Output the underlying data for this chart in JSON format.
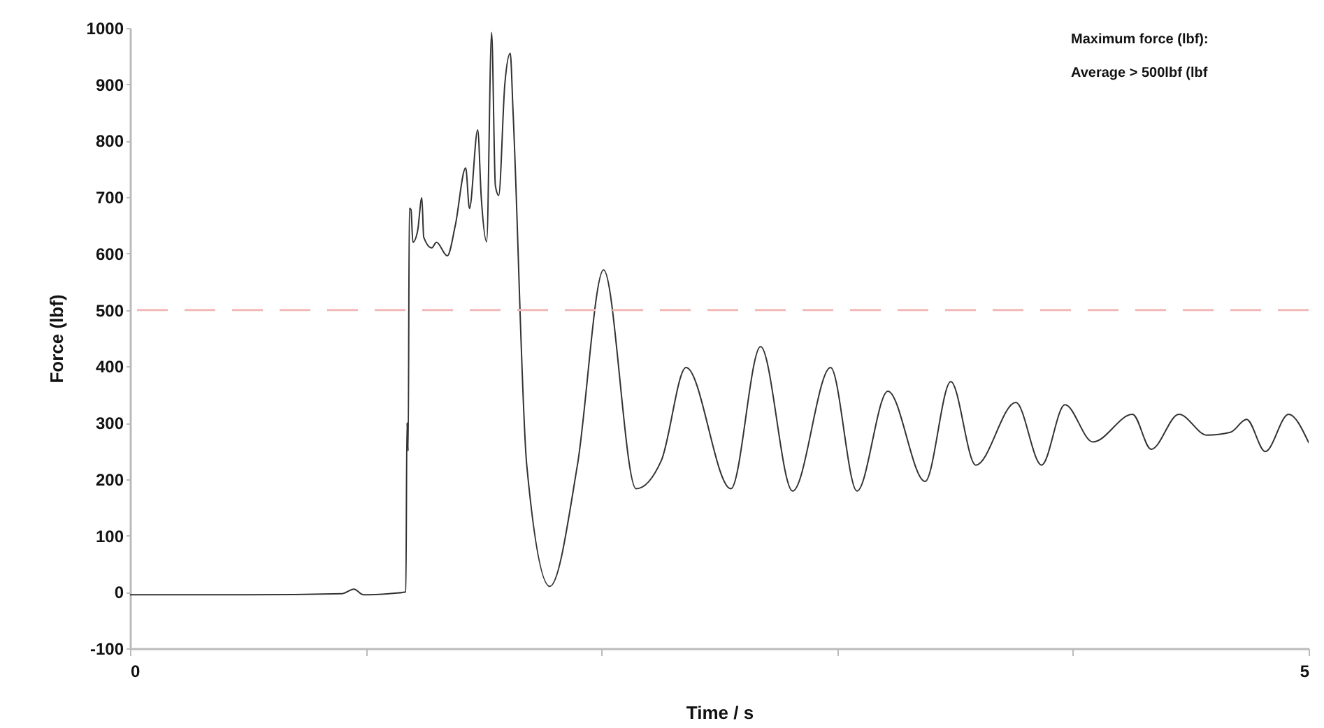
{
  "chart_data": {
    "type": "line",
    "xlabel": "Time / s",
    "ylabel": "Force (lbf)",
    "x": [
      0,
      0.5,
      0.9,
      0.95,
      0.99,
      1.1,
      1.17,
      1.175,
      1.18,
      1.185,
      1.192,
      1.2,
      1.22,
      1.238,
      1.246,
      1.28,
      1.3,
      1.346,
      1.38,
      1.424,
      1.44,
      1.475,
      1.49,
      1.513,
      1.534,
      1.55,
      1.564,
      1.59,
      1.613,
      1.625,
      1.683,
      1.781,
      1.898,
      2.009,
      2.147,
      2.254,
      2.359,
      2.549,
      2.675,
      2.811,
      2.972,
      3.084,
      3.215,
      3.373,
      3.482,
      3.588,
      3.758,
      3.867,
      3.966,
      4.085,
      4.253,
      4.332,
      4.45,
      4.569,
      4.668,
      4.737,
      4.816,
      4.915,
      5
    ],
    "series": [
      {
        "color": "#333333",
        "values": [
          -5,
          -5,
          -3,
          5,
          -5,
          -3,
          0,
          300,
          250,
          680,
          678,
          620,
          640,
          699,
          629,
          610,
          620,
          596,
          650,
          752,
          680,
          819,
          700,
          621,
          992,
          720,
          703,
          900,
          955,
          851,
          225,
          10,
          225,
          571,
          183,
          233,
          398,
          183,
          435,
          179,
          398,
          179,
          356,
          196,
          373,
          225,
          336,
          225,
          332,
          266,
          315,
          253,
          315,
          278,
          283,
          306,
          249,
          315,
          265
        ]
      }
    ],
    "xlim": [
      0,
      5
    ],
    "xticks": [
      0,
      {
        "value": 1,
        "label": null
      },
      {
        "value": 2,
        "label": null
      },
      {
        "value": 3,
        "label": null
      },
      {
        "value": 4,
        "label": null
      },
      5
    ],
    "ylim": [
      -100,
      1000
    ],
    "yticks": [
      -100,
      0,
      100,
      200,
      300,
      400,
      500,
      600,
      700,
      800,
      900,
      1000
    ],
    "ref_lines": [
      {
        "axis": "y",
        "value": 500,
        "color": "#f2b8b8",
        "line_style": "dashed"
      }
    ],
    "annotations": [
      "Maximum force (lbf):",
      "Average > 500lbf (lbf"
    ],
    "grid": false,
    "marker": "none",
    "line_style": "solid"
  }
}
